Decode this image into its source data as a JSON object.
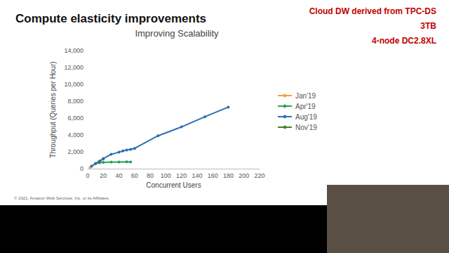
{
  "slide": {
    "title": "Compute elasticity improvements",
    "notes": [
      "Cloud DW derived from TPC-DS",
      "3TB",
      "4-node DC2.8XL"
    ],
    "footer": "© 2021, Amazon Web Services, Inc. or its Affiliates."
  },
  "chart_data": {
    "type": "line",
    "title": "Improving Scalability",
    "x_label": "Concurrent Users",
    "y_label": "Throughput (Queries per Hour)",
    "xlim": [
      0,
      220
    ],
    "xticks": [
      0,
      20,
      40,
      60,
      80,
      100,
      120,
      140,
      160,
      180,
      200,
      220
    ],
    "ylim": [
      0,
      14000
    ],
    "yticks": [
      0,
      2000,
      4000,
      6000,
      8000,
      10000,
      12000,
      14000
    ],
    "grid": false,
    "legend": "right",
    "marker": "circle",
    "series": [
      {
        "name": "Jan'19",
        "color": "#f4a13a",
        "x": [
          3,
          5
        ],
        "values": [
          150,
          300
        ]
      },
      {
        "name": "Apr'19",
        "color": "#2ca05a",
        "x": [
          10,
          15,
          20,
          30,
          40,
          50,
          55
        ],
        "values": [
          600,
          700,
          750,
          780,
          800,
          820,
          800
        ]
      },
      {
        "name": "Aug'19",
        "color": "#2e6fb0",
        "x": [
          5,
          10,
          15,
          20,
          30,
          40,
          45,
          50,
          55,
          60,
          90,
          120,
          150,
          180
        ],
        "values": [
          300,
          600,
          800,
          1200,
          1700,
          1950,
          2100,
          2200,
          2300,
          2400,
          3900,
          4950,
          6150,
          7300
        ]
      },
      {
        "name": "Nov'19",
        "color": "#4d7c2a",
        "x": [
          10,
          15,
          20
        ],
        "values": [
          600,
          900,
          1150
        ]
      }
    ]
  }
}
